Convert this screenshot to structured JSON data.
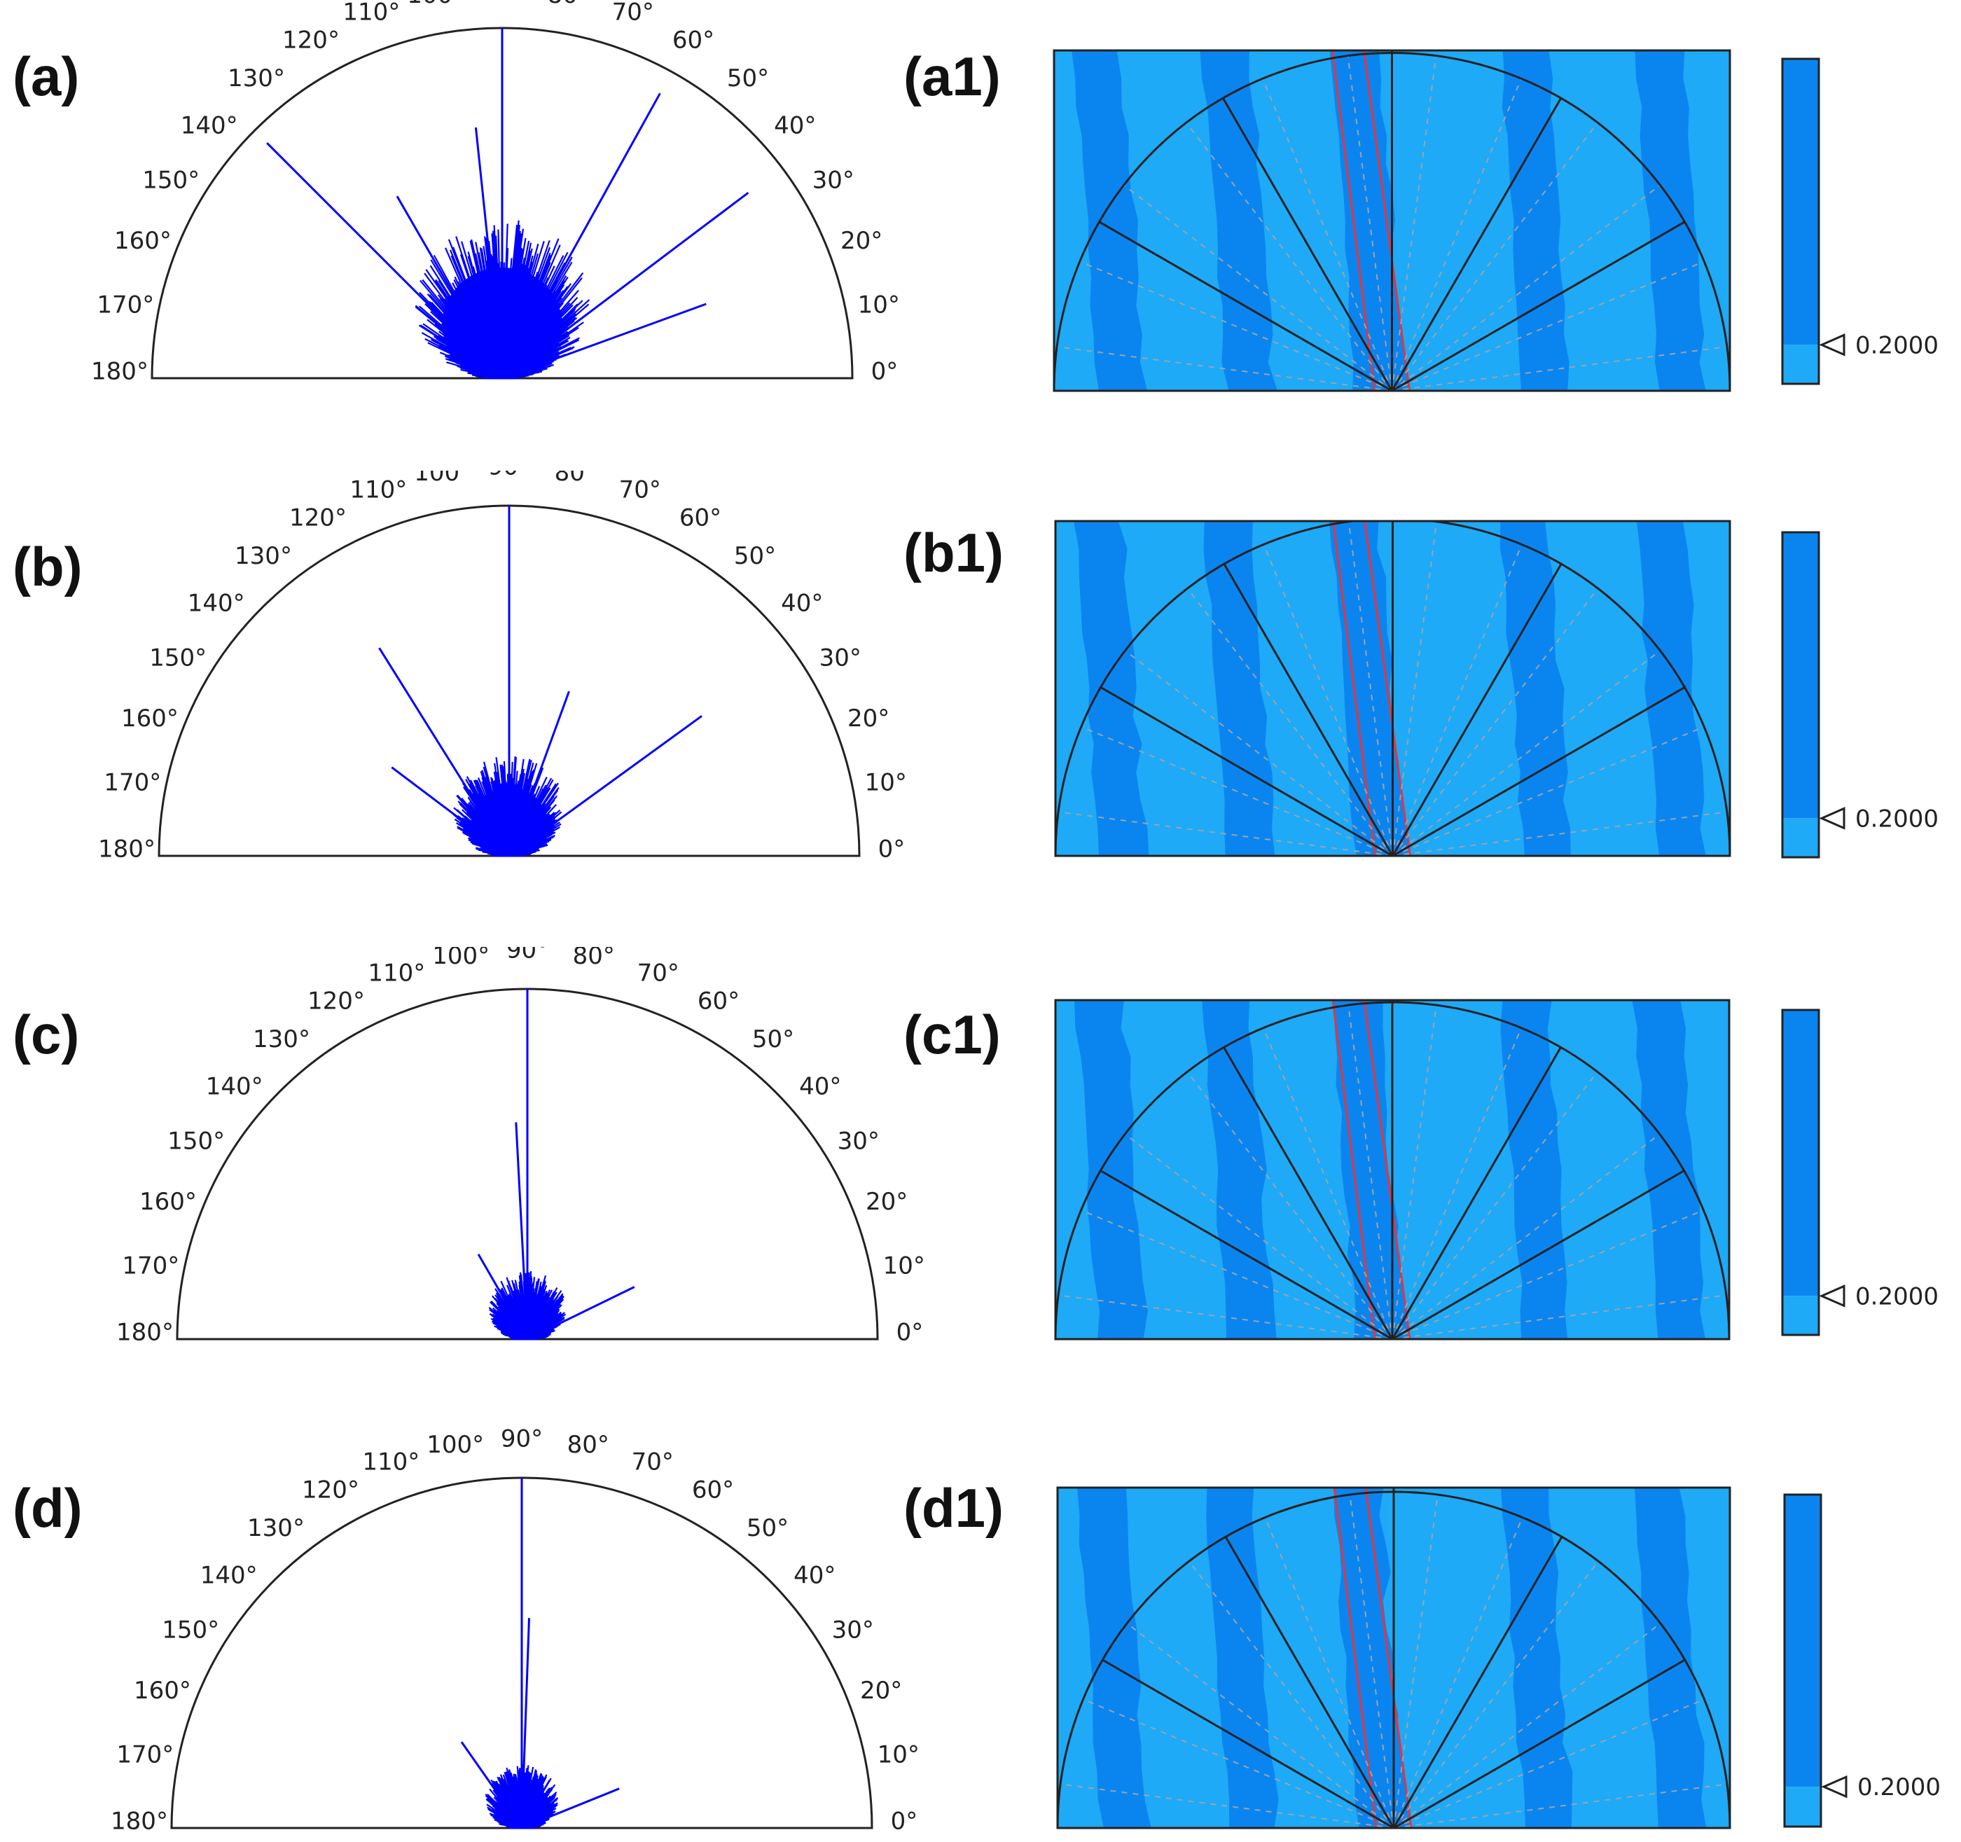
{
  "colors": {
    "rose": "#0000ff",
    "field_light": "#1eaaf7",
    "field_dark": "#0a85f0",
    "outline": "#222222",
    "crack": "#e8343a"
  },
  "degree_labels": [
    "0°",
    "10°",
    "20°",
    "30°",
    "40°",
    "50°",
    "60°",
    "70°",
    "80°",
    "90°",
    "100°",
    "110°",
    "120°",
    "130°",
    "140°",
    "150°",
    "160°",
    "170°",
    "180°"
  ],
  "colorbar_label": "0.2000",
  "chart_data": [
    {
      "type": "polar-rose",
      "panel_label": "(a)",
      "angle_range": [
        0,
        180
      ],
      "spread": 1.0,
      "dominant_rays": [
        {
          "angle": 90,
          "length": 1.0
        },
        {
          "angle": 135,
          "length": 0.95
        },
        {
          "angle": 61,
          "length": 0.93
        },
        {
          "angle": 37,
          "length": 0.88
        },
        {
          "angle": 96,
          "length": 0.72
        },
        {
          "angle": 120,
          "length": 0.6
        },
        {
          "angle": 20,
          "length": 0.62
        }
      ]
    },
    {
      "type": "polar-rose",
      "panel_label": "(b)",
      "angle_range": [
        0,
        180
      ],
      "spread": 0.6,
      "dominant_rays": [
        {
          "angle": 90,
          "length": 1.0
        },
        {
          "angle": 122,
          "length": 0.7
        },
        {
          "angle": 36,
          "length": 0.68
        },
        {
          "angle": 70,
          "length": 0.5
        },
        {
          "angle": 143,
          "length": 0.42
        }
      ]
    },
    {
      "type": "polar-rose",
      "panel_label": "(c)",
      "angle_range": [
        0,
        180
      ],
      "spread": 0.38,
      "dominant_rays": [
        {
          "angle": 90,
          "length": 1.0
        },
        {
          "angle": 93,
          "length": 0.62
        },
        {
          "angle": 26,
          "length": 0.34
        },
        {
          "angle": 120,
          "length": 0.28
        }
      ]
    },
    {
      "type": "polar-rose",
      "panel_label": "(d)",
      "angle_range": [
        0,
        180
      ],
      "spread": 0.35,
      "dominant_rays": [
        {
          "angle": 90,
          "length": 1.0
        },
        {
          "angle": 88,
          "length": 0.6
        },
        {
          "angle": 22,
          "length": 0.3
        },
        {
          "angle": 125,
          "length": 0.3
        }
      ]
    },
    {
      "type": "heatmap",
      "panel_label": "(a1)",
      "colorbar_threshold": 0.2
    },
    {
      "type": "heatmap",
      "panel_label": "(b1)",
      "colorbar_threshold": 0.2
    },
    {
      "type": "heatmap",
      "panel_label": "(c1)",
      "colorbar_threshold": 0.2
    },
    {
      "type": "heatmap",
      "panel_label": "(d1)",
      "colorbar_threshold": 0.2
    }
  ]
}
